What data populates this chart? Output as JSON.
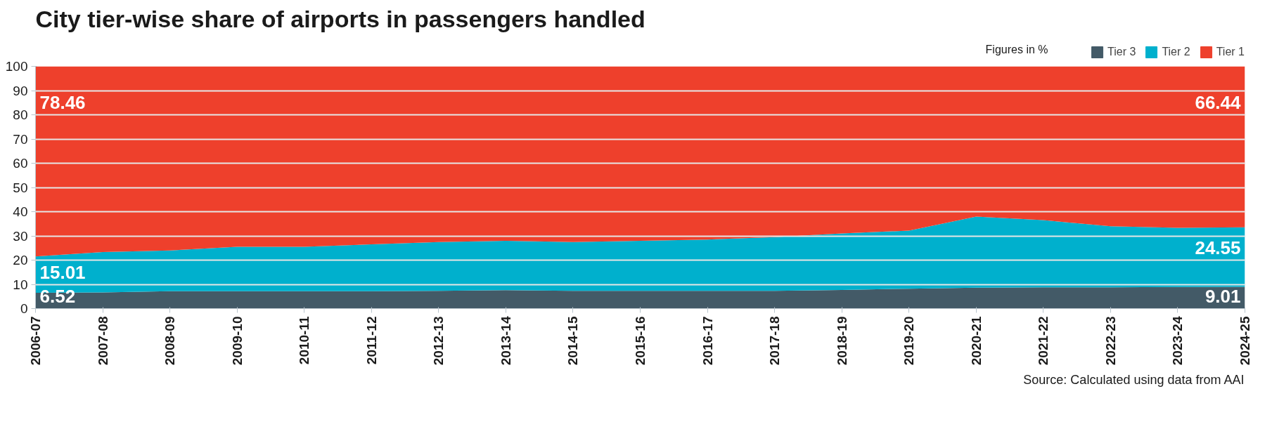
{
  "chart_data": {
    "type": "area",
    "stacked": true,
    "title": "City tier-wise share of airports in passengers handled",
    "annotations": [
      "Figures in %",
      "Source: Calculated using data from AAI"
    ],
    "categories": [
      "2006-07",
      "2007-08",
      "2008-09",
      "2009-10",
      "2010-11",
      "2011-12",
      "2012-13",
      "2013-14",
      "2014-15",
      "2015-16",
      "2016-17",
      "2017-18",
      "2018-19",
      "2019-20",
      "2020-21",
      "2021-22",
      "2022-23",
      "2023-24",
      "2024-25"
    ],
    "series": [
      {
        "name": "Tier 3",
        "color": "#435a67",
        "values": [
          6.52,
          6.7,
          7.2,
          7.2,
          7.2,
          7.2,
          7.3,
          7.6,
          7.3,
          7.3,
          7.3,
          7.3,
          7.7,
          8.2,
          8.6,
          8.8,
          8.8,
          8.9,
          9.01
        ],
        "value_labels": [
          "6.52",
          null,
          null,
          null,
          null,
          null,
          null,
          null,
          null,
          null,
          null,
          null,
          null,
          null,
          null,
          null,
          null,
          null,
          "9.01"
        ]
      },
      {
        "name": "Tier 2",
        "color": "#00b0cd",
        "values": [
          15.01,
          16.6,
          16.8,
          18.3,
          18.3,
          19.3,
          20.2,
          20.4,
          20.2,
          20.7,
          21.2,
          22.2,
          23.3,
          24.0,
          29.4,
          27.7,
          25.2,
          24.4,
          24.55
        ],
        "value_labels": [
          "15.01",
          null,
          null,
          null,
          null,
          null,
          null,
          null,
          null,
          null,
          null,
          null,
          null,
          null,
          null,
          null,
          null,
          null,
          "24.55"
        ]
      },
      {
        "name": "Tier 1",
        "color": "#ee402c",
        "values": [
          78.46,
          76.7,
          76.0,
          74.5,
          74.5,
          73.5,
          72.5,
          72.0,
          72.5,
          72.0,
          71.5,
          70.5,
          69.0,
          67.8,
          62.0,
          63.5,
          66.0,
          66.7,
          66.44
        ],
        "value_labels": [
          "78.46",
          null,
          null,
          null,
          null,
          null,
          null,
          null,
          null,
          null,
          null,
          null,
          null,
          null,
          null,
          null,
          null,
          null,
          "66.44"
        ]
      }
    ],
    "ylim": [
      0,
      100
    ],
    "yticks": [
      0,
      10,
      20,
      30,
      40,
      50,
      60,
      70,
      80,
      90,
      100
    ],
    "grid": "y",
    "legend": "top right"
  }
}
